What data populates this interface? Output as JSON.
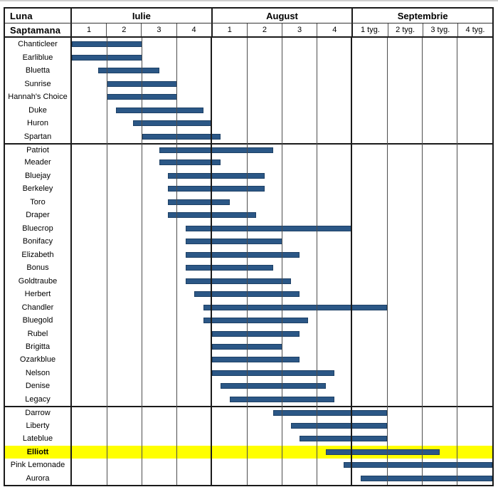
{
  "header": {
    "month_row_label": "Luna",
    "week_row_label": "Saptamana"
  },
  "colors": {
    "bar_fill": "#2B5786",
    "bar_border": "#1E4166",
    "highlight_row": "#FFFF00",
    "grid_thin": "#4D4D4D",
    "grid_thick": "#1A1A1A"
  },
  "chart_data": {
    "type": "bar",
    "subtype": "gantt-ripening-calendar",
    "title": "",
    "xlabel": "",
    "ylabel": "",
    "x_axis": {
      "unit": "week",
      "range": [
        0,
        12
      ],
      "months": [
        {
          "label": "Iulie",
          "weeks": [
            "1",
            "2",
            "3",
            "4"
          ]
        },
        {
          "label": "August",
          "weeks": [
            "1",
            "2",
            "3",
            "4"
          ]
        },
        {
          "label": "Septembrie",
          "weeks": [
            "1 tyg.",
            "2 tyg.",
            "3 tyg.",
            "4 tyg."
          ]
        }
      ]
    },
    "rows": [
      {
        "name": "Chanticleer",
        "start": 0,
        "end": 2
      },
      {
        "name": "Earliblue",
        "start": 0,
        "end": 2
      },
      {
        "name": "Bluetta",
        "start": 0.75,
        "end": 2.5
      },
      {
        "name": "Sunrise",
        "start": 1,
        "end": 3
      },
      {
        "name": "Hannah's Choice",
        "start": 1,
        "end": 3
      },
      {
        "name": "Duke",
        "start": 1.25,
        "end": 3.75
      },
      {
        "name": "Huron",
        "start": 1.75,
        "end": 4
      },
      {
        "name": "Spartan",
        "start": 2,
        "end": 4.25
      },
      {
        "name": "Patriot",
        "start": 2.5,
        "end": 5.75
      },
      {
        "name": "Meader",
        "start": 2.5,
        "end": 4.25
      },
      {
        "name": "Bluejay",
        "start": 2.75,
        "end": 5.5
      },
      {
        "name": "Berkeley",
        "start": 2.75,
        "end": 5.5
      },
      {
        "name": "Toro",
        "start": 2.75,
        "end": 4.5
      },
      {
        "name": "Draper",
        "start": 2.75,
        "end": 5.25
      },
      {
        "name": "Bluecrop",
        "start": 3.25,
        "end": 8
      },
      {
        "name": "Bonifacy",
        "start": 3.25,
        "end": 6
      },
      {
        "name": "Elizabeth",
        "start": 3.25,
        "end": 6.5
      },
      {
        "name": "Bonus",
        "start": 3.25,
        "end": 5.75
      },
      {
        "name": "Goldtraube",
        "start": 3.25,
        "end": 6.25
      },
      {
        "name": "Herbert",
        "start": 3.5,
        "end": 6.5
      },
      {
        "name": "Chandler",
        "start": 3.75,
        "end": 9
      },
      {
        "name": "Bluegold",
        "start": 3.75,
        "end": 6.75
      },
      {
        "name": "Rubel",
        "start": 4,
        "end": 6.5
      },
      {
        "name": "Brigitta",
        "start": 4,
        "end": 6
      },
      {
        "name": "Ozarkblue",
        "start": 4,
        "end": 6.5
      },
      {
        "name": "Nelson",
        "start": 4,
        "end": 7.5
      },
      {
        "name": "Denise",
        "start": 4.25,
        "end": 7.25
      },
      {
        "name": "Legacy",
        "start": 4.5,
        "end": 7.5
      },
      {
        "name": "Darrow",
        "start": 5.75,
        "end": 9
      },
      {
        "name": "Liberty",
        "start": 6.25,
        "end": 9
      },
      {
        "name": "Lateblue",
        "start": 6.5,
        "end": 9
      },
      {
        "name": "Elliott",
        "start": 7.25,
        "end": 10.5,
        "highlight": true
      },
      {
        "name": "Pink Lemonade",
        "start": 7.75,
        "end": 12
      },
      {
        "name": "Aurora",
        "start": 8.25,
        "end": 12
      }
    ],
    "group_breaks_after": [
      "Spartan",
      "Legacy"
    ],
    "legend_position": "none",
    "grid": "vertical-weeks"
  }
}
